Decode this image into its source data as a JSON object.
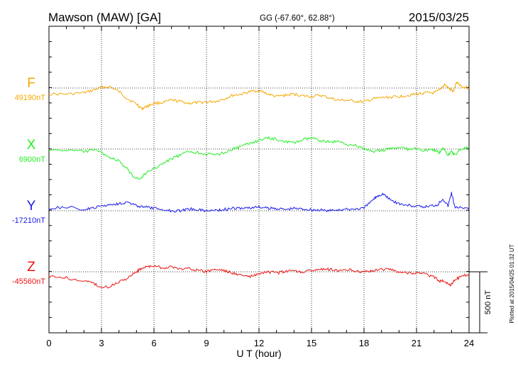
{
  "header": {
    "station": "Mawson (MAW)  [GA]",
    "coords": "GG (-67.60°,  62.88°)",
    "date": "2015/03/25"
  },
  "footer": {
    "xlabel": "U T (hour)",
    "plotted": "Plotted at 2015/04/25 01:32 UT"
  },
  "scale": {
    "label": "500 nT",
    "nT": 500
  },
  "chart_data": {
    "type": "line",
    "xlabel": "U T (hour)",
    "xlim": [
      0,
      24
    ],
    "xticks": [
      "0",
      "3",
      "6",
      "9",
      "12",
      "15",
      "18",
      "21",
      "24"
    ],
    "grid": true,
    "series": [
      {
        "name": "F",
        "baseline_label": "49190nT",
        "baseline": 49190,
        "color": "#f5a800",
        "x": [
          0,
          1,
          2,
          2.5,
          3,
          3.5,
          4,
          4.5,
          5,
          5.3,
          5.6,
          6,
          6.5,
          7,
          7.5,
          8,
          8.5,
          9,
          9.5,
          10,
          10.5,
          11,
          11.5,
          12,
          12.5,
          13,
          13.5,
          14,
          14.5,
          15,
          15.5,
          16,
          16.5,
          17,
          17.5,
          18,
          18.5,
          19,
          19.5,
          20,
          20.5,
          21,
          21.5,
          22,
          22.3,
          22.6,
          22.9,
          23.1,
          23.3,
          23.6,
          24
        ],
        "y": [
          49140,
          49140,
          49150,
          49170,
          49195,
          49200,
          49160,
          49100,
          49060,
          49020,
          49040,
          49065,
          49070,
          49090,
          49080,
          49065,
          49070,
          49075,
          49080,
          49100,
          49130,
          49140,
          49160,
          49170,
          49140,
          49120,
          49130,
          49140,
          49125,
          49120,
          49130,
          49110,
          49090,
          49090,
          49080,
          49075,
          49100,
          49110,
          49115,
          49120,
          49130,
          49140,
          49150,
          49150,
          49170,
          49220,
          49180,
          49160,
          49240,
          49200,
          49190
        ]
      },
      {
        "name": "X",
        "baseline_label": "6900nT",
        "baseline": 6900,
        "color": "#22ee22",
        "x": [
          0,
          1,
          2,
          2.8,
          3,
          3.5,
          4,
          4.5,
          4.8,
          5.2,
          5.5,
          6,
          6.5,
          7,
          7.5,
          8,
          8.5,
          9,
          9.5,
          10,
          10.5,
          11,
          11.5,
          12,
          12.5,
          13,
          13.5,
          14,
          14.5,
          15,
          15.5,
          16,
          16.5,
          17,
          17.5,
          18,
          18.5,
          19,
          19.5,
          20,
          20.5,
          21,
          21.5,
          22,
          22.3,
          22.5,
          22.8,
          23,
          23.2,
          23.5,
          24
        ],
        "y": [
          6890,
          6890,
          6880,
          6890,
          6870,
          6830,
          6800,
          6730,
          6680,
          6650,
          6700,
          6740,
          6780,
          6820,
          6850,
          6880,
          6870,
          6860,
          6850,
          6870,
          6900,
          6920,
          6950,
          6970,
          6990,
          6980,
          6960,
          6950,
          6975,
          6990,
          6970,
          6960,
          6960,
          6940,
          6930,
          6900,
          6880,
          6890,
          6900,
          6910,
          6900,
          6900,
          6890,
          6890,
          6870,
          6910,
          6850,
          6880,
          6850,
          6900,
          6910
        ]
      },
      {
        "name": "Y",
        "baseline_label": "-17210nT",
        "baseline": -17210,
        "color": "#1a1aee",
        "x": [
          0,
          1,
          2,
          2.5,
          3,
          3.5,
          4,
          4.5,
          5,
          5.5,
          6,
          6.5,
          7,
          7.5,
          8,
          8.5,
          9,
          9.5,
          10,
          10.5,
          11,
          11.5,
          12,
          12.5,
          13,
          13.5,
          14,
          14.5,
          15,
          15.5,
          16,
          16.5,
          17,
          17.5,
          18,
          18.5,
          18.8,
          19.1,
          19.4,
          19.8,
          20.2,
          20.8,
          21.3,
          21.8,
          22.2,
          22.5,
          22.8,
          23,
          23.2,
          23.5,
          24
        ],
        "y": [
          -17190,
          -17180,
          -17200,
          -17190,
          -17170,
          -17160,
          -17150,
          -17140,
          -17170,
          -17180,
          -17190,
          -17200,
          -17210,
          -17210,
          -17195,
          -17200,
          -17210,
          -17205,
          -17200,
          -17190,
          -17190,
          -17185,
          -17180,
          -17190,
          -17190,
          -17200,
          -17190,
          -17195,
          -17200,
          -17205,
          -17210,
          -17200,
          -17200,
          -17195,
          -17190,
          -17120,
          -17085,
          -17070,
          -17110,
          -17140,
          -17160,
          -17170,
          -17180,
          -17170,
          -17160,
          -17110,
          -17170,
          -17060,
          -17190,
          -17175,
          -17200
        ]
      },
      {
        "name": "Z",
        "baseline_label": "-45560nT",
        "baseline": -45560,
        "color": "#ee1111",
        "x": [
          0,
          1,
          2,
          2.5,
          3,
          3.5,
          4,
          4.5,
          5,
          5.3,
          5.6,
          6,
          6.5,
          7,
          7.5,
          8,
          8.5,
          9,
          9.5,
          10,
          10.5,
          11,
          11.5,
          12,
          12.5,
          13,
          13.5,
          14,
          14.5,
          15,
          15.5,
          16,
          16.5,
          17,
          17.5,
          18,
          18.5,
          19,
          19.5,
          20,
          20.5,
          21,
          21.5,
          22,
          22.3,
          22.6,
          22.9,
          23.2,
          23.5,
          24
        ],
        "y": [
          -45600,
          -45610,
          -45640,
          -45650,
          -45690,
          -45680,
          -45640,
          -45610,
          -45560,
          -45530,
          -45520,
          -45510,
          -45530,
          -45520,
          -45540,
          -45530,
          -45550,
          -45560,
          -45540,
          -45550,
          -45570,
          -45590,
          -45600,
          -45580,
          -45560,
          -45570,
          -45560,
          -45550,
          -45560,
          -45550,
          -45540,
          -45540,
          -45550,
          -45540,
          -45550,
          -45560,
          -45550,
          -45540,
          -45540,
          -45560,
          -45570,
          -45570,
          -45580,
          -45600,
          -45640,
          -45630,
          -45670,
          -45630,
          -45600,
          -45580
        ]
      }
    ]
  }
}
